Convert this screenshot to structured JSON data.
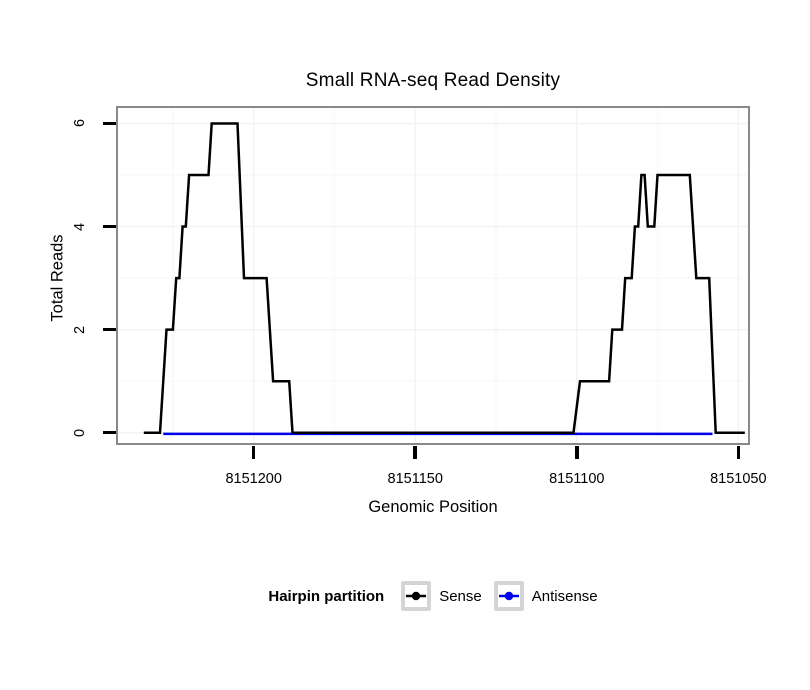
{
  "title": "Small RNA-seq Read Density",
  "x_axis": {
    "label": "Genomic Position",
    "tick_labels": [
      "8151200",
      "8151150",
      "8151100",
      "8151050"
    ],
    "tick_values": [
      8151200,
      8151150,
      8151100,
      8151050
    ],
    "minor_tick_values": [
      8151225,
      8151175,
      8151125,
      8151075
    ],
    "reversed": true
  },
  "y_axis": {
    "label": "Total Reads",
    "tick_labels": [
      "0",
      "2",
      "4",
      "6"
    ],
    "tick_values": [
      0,
      2,
      4,
      6
    ],
    "minor_tick_values": [
      1,
      3,
      5
    ]
  },
  "legend": {
    "title": "Hairpin partition",
    "entries": [
      {
        "label": "Sense",
        "color": "#000000",
        "glyph": "line-with-dot"
      },
      {
        "label": "Antisense",
        "color": "#0000EE",
        "glyph": "line-with-dot"
      }
    ]
  },
  "colors": {
    "sense_line": "#000000",
    "antisense_line": "#0000EE",
    "panel_border": "#898989",
    "grid_major": "#f3f3f3",
    "grid_minor": "#f9f9f9",
    "legend_key_border": "#d4d4d4",
    "background": "#ffffff"
  },
  "chart_data": {
    "type": "line",
    "title": "Small RNA-seq Read Density",
    "xlabel": "Genomic Position",
    "ylabel": "Total Reads",
    "x_reversed": true,
    "xlim": [
      8151242,
      8151047
    ],
    "ylim": [
      -0.2,
      6.3
    ],
    "x_ticks": [
      8151200,
      8151150,
      8151100,
      8151050
    ],
    "y_ticks": [
      0,
      2,
      4,
      6
    ],
    "grid": true,
    "legend_position": "bottom",
    "series": [
      {
        "name": "Sense",
        "color": "#000000",
        "points": [
          [
            8151234,
            0
          ],
          [
            8151229,
            0
          ],
          [
            8151227,
            2
          ],
          [
            8151225,
            2
          ],
          [
            8151224,
            3
          ],
          [
            8151223,
            3
          ],
          [
            8151222,
            4
          ],
          [
            8151221,
            4
          ],
          [
            8151220,
            5
          ],
          [
            8151214,
            5
          ],
          [
            8151213,
            6
          ],
          [
            8151205,
            6
          ],
          [
            8151203,
            3
          ],
          [
            8151196,
            3
          ],
          [
            8151194,
            1
          ],
          [
            8151189,
            1
          ],
          [
            8151188,
            0
          ],
          [
            8151101,
            0
          ],
          [
            8151099,
            1
          ],
          [
            8151090,
            1
          ],
          [
            8151089,
            2
          ],
          [
            8151086,
            2
          ],
          [
            8151085,
            3
          ],
          [
            8151083,
            3
          ],
          [
            8151082,
            4
          ],
          [
            8151081,
            4
          ],
          [
            8151080,
            5
          ],
          [
            8151079,
            5
          ],
          [
            8151078,
            4
          ],
          [
            8151076,
            4
          ],
          [
            8151075,
            5
          ],
          [
            8151065,
            5
          ],
          [
            8151063,
            3
          ],
          [
            8151059,
            3
          ],
          [
            8151057,
            0
          ],
          [
            8151048,
            0
          ]
        ]
      },
      {
        "name": "Antisense",
        "color": "#0000EE",
        "points": [
          [
            8151228,
            0
          ],
          [
            8151058,
            0
          ]
        ]
      }
    ]
  }
}
